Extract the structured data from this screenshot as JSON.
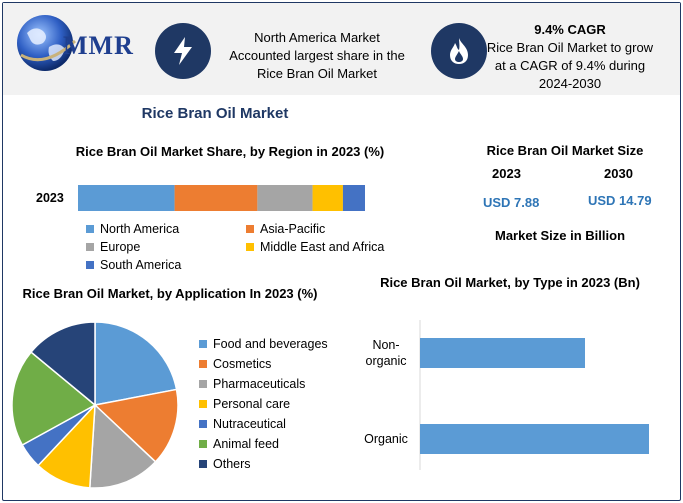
{
  "header": {
    "logo_text": "MMR",
    "highlight1": [
      "North America Market",
      "Accounted largest share in the",
      "Rice Bran Oil Market"
    ],
    "highlight2_title": "9.4% CAGR",
    "highlight2": [
      "Rice Bran Oil Market to grow",
      "at a CAGR of 9.4% during",
      "2024-2030"
    ]
  },
  "page_title": "Rice Bran Oil Market",
  "market_size": {
    "title": "Rice Bran Oil Market Size",
    "year1": "2023",
    "year2": "2030",
    "value1": "USD 7.88",
    "value2": "USD 14.79",
    "note": "Market Size in Billion"
  },
  "colors": {
    "blue": "#5b9bd5",
    "orange": "#ed7d31",
    "gray": "#a5a5a5",
    "yellow": "#ffc000",
    "darkblue": "#4472c4",
    "green": "#70ad47",
    "navy": "#264478",
    "header_bg": "#f2f2f2",
    "title_navy": "#1f3864",
    "usd_blue": "#2e75b6"
  },
  "chart_data": [
    {
      "type": "bar",
      "orientation": "horizontal-stacked",
      "title": "Rice Bran Oil Market Share, by Region in 2023 (%)",
      "categories": [
        "2023"
      ],
      "series": [
        {
          "name": "North America",
          "values": [
            35
          ],
          "color": "#5b9bd5"
        },
        {
          "name": "Asia-Pacific",
          "values": [
            30
          ],
          "color": "#ed7d31"
        },
        {
          "name": "Europe",
          "values": [
            20
          ],
          "color": "#a5a5a5"
        },
        {
          "name": "Middle East and Africa",
          "values": [
            11
          ],
          "color": "#ffc000"
        },
        {
          "name": "South America",
          "values": [
            8
          ],
          "color": "#4472c4"
        }
      ],
      "legend_placement": "bottom",
      "grid": false
    },
    {
      "type": "pie",
      "title": "Rice Bran Oil Market, by Application In 2023 (%)",
      "slices": [
        {
          "name": "Food and beverages",
          "value": 22,
          "color": "#5b9bd5"
        },
        {
          "name": "Cosmetics",
          "value": 15,
          "color": "#ed7d31"
        },
        {
          "name": "Pharmaceuticals",
          "value": 14,
          "color": "#a5a5a5"
        },
        {
          "name": "Personal care",
          "value": 11,
          "color": "#ffc000"
        },
        {
          "name": "Nutraceutical",
          "value": 5,
          "color": "#4472c4"
        },
        {
          "name": "Animal feed",
          "value": 19,
          "color": "#70ad47"
        },
        {
          "name": "Others",
          "value": 14,
          "color": "#264478"
        }
      ],
      "legend_placement": "right"
    },
    {
      "type": "bar",
      "orientation": "horizontal",
      "title": "Rice Bran Oil Market, by Type in 2023 (Bn)",
      "categories": [
        "Non-organic",
        "Organic"
      ],
      "values": [
        3.3,
        4.58
      ],
      "color": "#5b9bd5",
      "xlim": [
        0,
        5
      ],
      "grid": false
    }
  ]
}
